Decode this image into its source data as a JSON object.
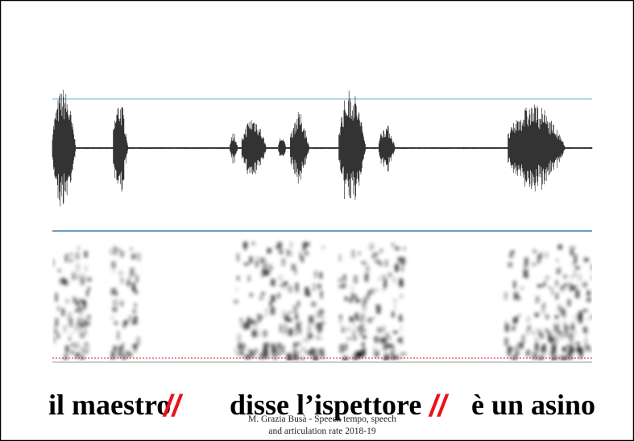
{
  "caption": {
    "phrase_1": "il maestro",
    "separator_1": "//",
    "phrase_2": "disse l’ispettore",
    "separator_2": "//",
    "phrase_3": "è un asino"
  },
  "footer": {
    "line_1": "M. Grazia Busà - Speech tempo, speech",
    "line_2": "and articulation rate 2018-19"
  }
}
